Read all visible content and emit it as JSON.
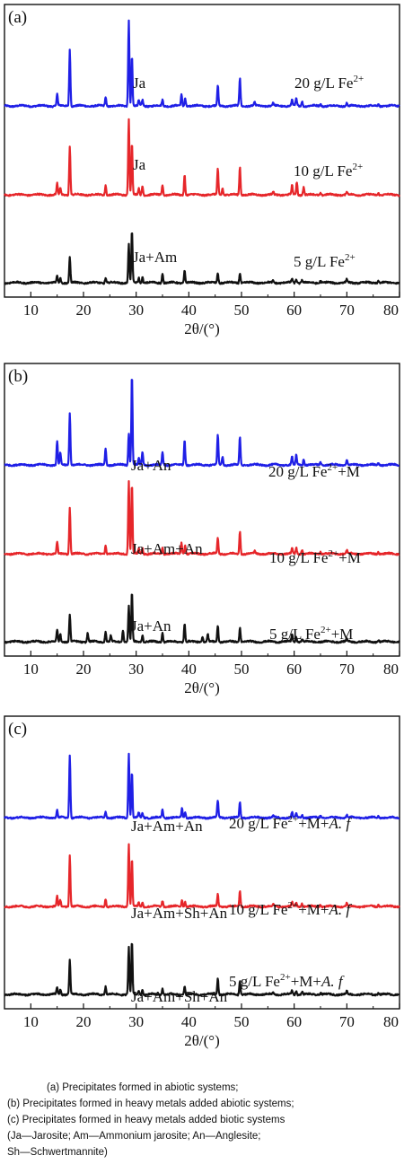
{
  "colors": {
    "blue": "#1f1fe6",
    "red": "#e6262a",
    "black": "#111111"
  },
  "panels": [
    {
      "label": "(a)",
      "traces": [
        {
          "color": "blue",
          "phase": "Ja",
          "sample": [
            "20 g/L Fe",
            "2+",
            ""
          ]
        },
        {
          "color": "red",
          "phase": "Ja",
          "sample": [
            "10 g/L Fe",
            "2+",
            ""
          ]
        },
        {
          "color": "black",
          "phase": "Ja+Am",
          "sample": [
            "5 g/L Fe",
            "2+",
            ""
          ]
        }
      ]
    },
    {
      "label": "(b)",
      "traces": [
        {
          "color": "blue",
          "phase": "Ja+An",
          "sample": [
            "20 g/L Fe",
            "2+",
            "+M"
          ]
        },
        {
          "color": "red",
          "phase": "Ja+Am+An",
          "sample": [
            "10 g/L Fe",
            "2+",
            "+M"
          ]
        },
        {
          "color": "black",
          "phase": "Ja+An",
          "sample": [
            "5 g/L Fe",
            "2+",
            "+M"
          ]
        }
      ]
    },
    {
      "label": "(c)",
      "traces": [
        {
          "color": "blue",
          "phase": "Ja+Am+An",
          "sample": [
            "20 g/L Fe",
            "2+",
            "+M+",
            "A. f"
          ]
        },
        {
          "color": "red",
          "phase": "Ja+Am+Sh+An",
          "sample": [
            "10 g/L Fe",
            "2+",
            "+M+",
            "A. f"
          ]
        },
        {
          "color": "black",
          "phase": "Ja+Am+Sh+An",
          "sample": [
            "5 g/L Fe",
            "2+",
            "+M+",
            "A. f"
          ]
        }
      ]
    }
  ],
  "chart_data": [
    {
      "type": "line",
      "panel": "(a)",
      "xlabel": "2θ/(°)",
      "xlim": [
        5,
        80
      ],
      "x_ticks": [
        10,
        20,
        30,
        40,
        50,
        60,
        70,
        80
      ],
      "y_ticks": [],
      "series": [
        {
          "name": "20 g/L Fe2+",
          "color": "blue",
          "peaks": [
            [
              15,
              0.12
            ],
            [
              17.4,
              0.56
            ],
            [
              24.2,
              0.09
            ],
            [
              28.6,
              0.86
            ],
            [
              29.2,
              0.5
            ],
            [
              30.5,
              0.05
            ],
            [
              31.2,
              0.06
            ],
            [
              35,
              0.06
            ],
            [
              38.6,
              0.11
            ],
            [
              39.3,
              0.08
            ],
            [
              45.5,
              0.2
            ],
            [
              49.7,
              0.28
            ],
            [
              52.5,
              0.03
            ],
            [
              56,
              0.03
            ],
            [
              59.6,
              0.06
            ],
            [
              60.4,
              0.07
            ],
            [
              61.5,
              0.05
            ],
            [
              65,
              0.02
            ],
            [
              70,
              0.03
            ],
            [
              76,
              0.02
            ]
          ]
        },
        {
          "name": "10 g/L Fe2+",
          "color": "red",
          "peaks": [
            [
              15,
              0.11
            ],
            [
              15.6,
              0.07
            ],
            [
              17.4,
              0.48
            ],
            [
              24.2,
              0.1
            ],
            [
              28.6,
              0.76
            ],
            [
              29.2,
              0.52
            ],
            [
              30.5,
              0.06
            ],
            [
              31.2,
              0.09
            ],
            [
              35,
              0.1
            ],
            [
              39.2,
              0.2
            ],
            [
              45.5,
              0.26
            ],
            [
              46.4,
              0.07
            ],
            [
              49.7,
              0.28
            ],
            [
              56,
              0.03
            ],
            [
              59.6,
              0.09
            ],
            [
              60.5,
              0.13
            ],
            [
              61.8,
              0.08
            ],
            [
              65,
              0.02
            ],
            [
              70,
              0.03
            ],
            [
              76,
              0.02
            ]
          ]
        },
        {
          "name": "5 g/L Fe2+",
          "color": "black",
          "peaks": [
            [
              15,
              0.07
            ],
            [
              15.6,
              0.05
            ],
            [
              17.4,
              0.25
            ],
            [
              24.2,
              0.05
            ],
            [
              28.6,
              0.38
            ],
            [
              29.2,
              0.52
            ],
            [
              30.5,
              0.05
            ],
            [
              31.2,
              0.06
            ],
            [
              35,
              0.09
            ],
            [
              39.2,
              0.12
            ],
            [
              45.5,
              0.1
            ],
            [
              49.7,
              0.1
            ],
            [
              56,
              0.02
            ],
            [
              59.6,
              0.04
            ],
            [
              60.4,
              0.04
            ],
            [
              61.5,
              0.03
            ],
            [
              65,
              0.02
            ],
            [
              70,
              0.03
            ],
            [
              76,
              0.02
            ]
          ]
        }
      ]
    },
    {
      "type": "line",
      "panel": "(b)",
      "xlabel": "2θ/(°)",
      "xlim": [
        5,
        80
      ],
      "x_ticks": [
        10,
        20,
        30,
        40,
        50,
        60,
        70,
        80
      ],
      "y_ticks": [],
      "series": [
        {
          "name": "20 g/L Fe2+ +M",
          "color": "blue",
          "peaks": [
            [
              15,
              0.24
            ],
            [
              15.6,
              0.12
            ],
            [
              17.4,
              0.52
            ],
            [
              24.2,
              0.17
            ],
            [
              28.6,
              0.32
            ],
            [
              29.2,
              0.9
            ],
            [
              30.5,
              0.06
            ],
            [
              31.2,
              0.13
            ],
            [
              35,
              0.13
            ],
            [
              39.2,
              0.25
            ],
            [
              45.5,
              0.3
            ],
            [
              46.4,
              0.08
            ],
            [
              49.7,
              0.28
            ],
            [
              59.6,
              0.08
            ],
            [
              60.4,
              0.1
            ],
            [
              61.8,
              0.06
            ],
            [
              65,
              0.03
            ],
            [
              70,
              0.05
            ],
            [
              76,
              0.02
            ]
          ]
        },
        {
          "name": "10 g/L Fe2+ +M",
          "color": "red",
          "peaks": [
            [
              15,
              0.12
            ],
            [
              17.4,
              0.46
            ],
            [
              24.2,
              0.09
            ],
            [
              28.6,
              0.72
            ],
            [
              29.2,
              0.7
            ],
            [
              30.5,
              0.05
            ],
            [
              31.2,
              0.06
            ],
            [
              35,
              0.07
            ],
            [
              38.6,
              0.11
            ],
            [
              39.3,
              0.09
            ],
            [
              45.5,
              0.16
            ],
            [
              49.7,
              0.22
            ],
            [
              52.5,
              0.03
            ],
            [
              59.6,
              0.05
            ],
            [
              60.4,
              0.06
            ],
            [
              61.5,
              0.04
            ],
            [
              65,
              0.02
            ],
            [
              70,
              0.03
            ],
            [
              76,
              0.02
            ]
          ]
        },
        {
          "name": "5 g/L Fe2+ +M",
          "color": "black",
          "peaks": [
            [
              15,
              0.12
            ],
            [
              15.6,
              0.08
            ],
            [
              17.4,
              0.27
            ],
            [
              20.8,
              0.09
            ],
            [
              24.2,
              0.1
            ],
            [
              25.2,
              0.06
            ],
            [
              27.5,
              0.12
            ],
            [
              28.6,
              0.35
            ],
            [
              29.2,
              0.49
            ],
            [
              31.2,
              0.07
            ],
            [
              35,
              0.09
            ],
            [
              39.2,
              0.18
            ],
            [
              42.6,
              0.05
            ],
            [
              43.6,
              0.07
            ],
            [
              45.5,
              0.16
            ],
            [
              49.7,
              0.14
            ],
            [
              59.6,
              0.07
            ],
            [
              60.4,
              0.05
            ],
            [
              61.5,
              0.03
            ],
            [
              70,
              0.03
            ],
            [
              76,
              0.02
            ]
          ]
        }
      ]
    },
    {
      "type": "line",
      "panel": "(c)",
      "xlabel": "2θ/(°)",
      "xlim": [
        5,
        80
      ],
      "x_ticks": [
        10,
        20,
        30,
        40,
        50,
        60,
        70,
        80
      ],
      "y_ticks": [],
      "series": [
        {
          "name": "20 g/L Fe2+ +M+A. f",
          "color": "blue",
          "peaks": [
            [
              15,
              0.07
            ],
            [
              17.4,
              0.62
            ],
            [
              24.2,
              0.06
            ],
            [
              28.6,
              0.64
            ],
            [
              29.2,
              0.46
            ],
            [
              30.5,
              0.05
            ],
            [
              31.2,
              0.04
            ],
            [
              35,
              0.08
            ],
            [
              38.7,
              0.09
            ],
            [
              39.3,
              0.06
            ],
            [
              45.5,
              0.17
            ],
            [
              49.7,
              0.15
            ],
            [
              56,
              0.02
            ],
            [
              59.6,
              0.05
            ],
            [
              60.4,
              0.04
            ],
            [
              61.5,
              0.03
            ],
            [
              65,
              0.02
            ],
            [
              70,
              0.03
            ],
            [
              76,
              0.02
            ]
          ]
        },
        {
          "name": "10 g/L Fe2+ +M+A. f",
          "color": "red",
          "peaks": [
            [
              15,
              0.1
            ],
            [
              15.6,
              0.06
            ],
            [
              17.4,
              0.51
            ],
            [
              24.2,
              0.08
            ],
            [
              28.6,
              0.63
            ],
            [
              29.2,
              0.47
            ],
            [
              30.5,
              0.04
            ],
            [
              31.2,
              0.04
            ],
            [
              35,
              0.06
            ],
            [
              38.7,
              0.07
            ],
            [
              39.3,
              0.05
            ],
            [
              45.5,
              0.12
            ],
            [
              49.7,
              0.16
            ],
            [
              56,
              0.02
            ],
            [
              59.6,
              0.04
            ],
            [
              60.4,
              0.04
            ],
            [
              61.5,
              0.03
            ],
            [
              65,
              0.02
            ],
            [
              70,
              0.03
            ],
            [
              76,
              0.02
            ]
          ]
        },
        {
          "name": "5 g/L Fe2+ +M+A. f",
          "color": "black",
          "peaks": [
            [
              15,
              0.07
            ],
            [
              15.6,
              0.05
            ],
            [
              17.4,
              0.34
            ],
            [
              24.2,
              0.08
            ],
            [
              28.6,
              0.47
            ],
            [
              29.2,
              0.52
            ],
            [
              30.5,
              0.04
            ],
            [
              31.2,
              0.05
            ],
            [
              35,
              0.06
            ],
            [
              39.2,
              0.08
            ],
            [
              45.5,
              0.16
            ],
            [
              49.7,
              0.14
            ],
            [
              56,
              0.02
            ],
            [
              59.6,
              0.04
            ],
            [
              60.4,
              0.04
            ],
            [
              61.5,
              0.03
            ],
            [
              65,
              0.02
            ],
            [
              70,
              0.03
            ],
            [
              76,
              0.02
            ]
          ]
        }
      ]
    }
  ],
  "caption": {
    "lines": [
      "(a) Precipitates formed in abiotic systems;",
      "(b) Precipitates formed in heavy metals added abiotic systems;",
      "(c) Precipitates formed in heavy metals added biotic systems",
      "(Ja—Jarosite;  Am—Ammonium jarosite;  An—Anglesite;",
      "Sh—Schwertmannite)"
    ]
  }
}
